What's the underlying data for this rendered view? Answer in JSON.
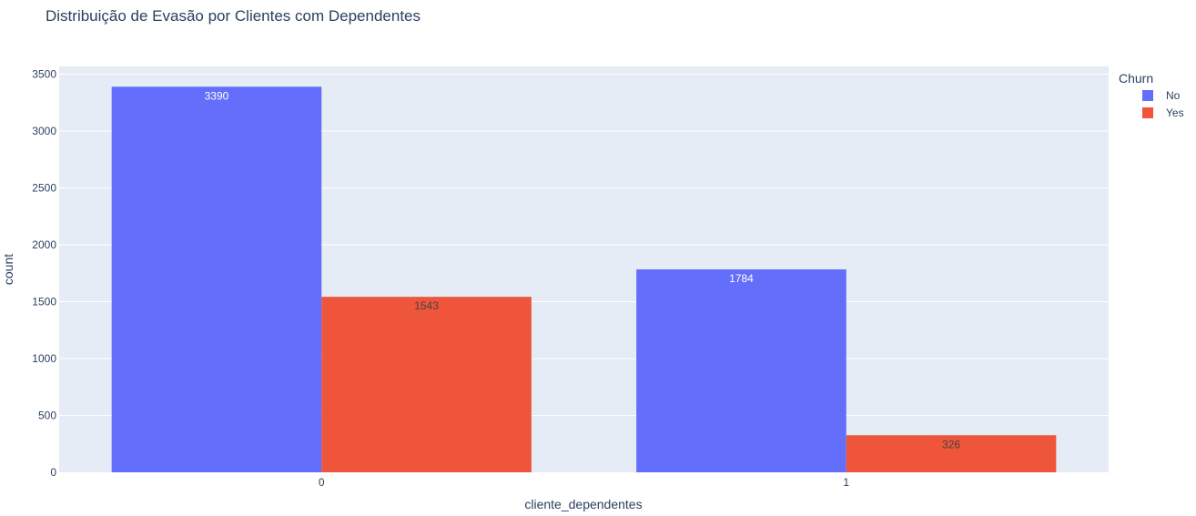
{
  "chart_data": {
    "type": "bar",
    "title": "Distribuição de Evasão por Clientes com Dependentes",
    "xlabel": "cliente_dependentes",
    "ylabel": "count",
    "categories": [
      "0",
      "1"
    ],
    "series": [
      {
        "name": "No",
        "values": [
          3390,
          1784
        ],
        "color": "#636efa",
        "label_color": "#ffffff"
      },
      {
        "name": "Yes",
        "values": [
          1543,
          326
        ],
        "color": "#ef553b",
        "label_color": "#444444"
      }
    ],
    "ylim": [
      0,
      3568.4
    ],
    "yticks": [
      0,
      500,
      1000,
      1500,
      2000,
      2500,
      3000,
      3500
    ],
    "grid": true,
    "legend": {
      "title": "Churn",
      "placement": "top-right"
    },
    "plot_background": "#e5ecf6",
    "gridline_color": "#ffffff"
  }
}
